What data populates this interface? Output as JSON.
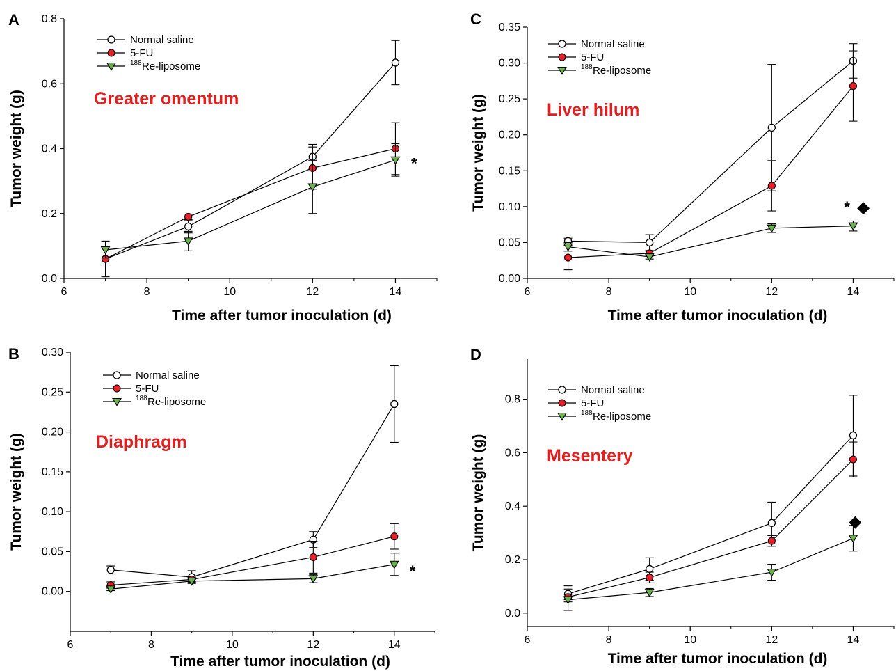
{
  "colors": {
    "normal_saline_fill": "#ffffff",
    "fu_fill": "#e8202a",
    "re_liposome_fill": "#6ab04c",
    "region_label": "#e02020",
    "line": "#000000"
  },
  "chart_data": [
    {
      "panel": "A",
      "type": "line",
      "region_label": "Greater omentum",
      "xlabel": "Time after tumor inoculation (d)",
      "ylabel": "Tumor weight (g)",
      "xlim": [
        6,
        15
      ],
      "ylim": [
        0,
        0.8
      ],
      "xticks": [
        "6",
        "8",
        "10",
        "12",
        "14"
      ],
      "yticks": [
        "0.0",
        "0.2",
        "0.4",
        "0.6",
        "0.8"
      ],
      "legend_position": "top-left",
      "x": [
        7,
        9,
        12,
        14
      ],
      "series": [
        {
          "name": "Normal saline",
          "marker": "open-circle",
          "values": [
            0.06,
            0.16,
            0.375,
            0.665
          ],
          "errors": [
            0.055,
            0.02,
            0.038,
            0.068
          ]
        },
        {
          "name": "5-FU",
          "marker": "red-circle",
          "values": [
            0.06,
            0.19,
            0.34,
            0.4
          ],
          "errors": [
            0.0,
            0.008,
            0.065,
            0.08
          ]
        },
        {
          "name": "Re-liposome",
          "name_sup": "188",
          "marker": "green-triangle",
          "values": [
            0.088,
            0.115,
            0.282,
            0.365
          ],
          "errors": [
            0.025,
            0.03,
            0.082,
            0.05
          ]
        }
      ],
      "annotations": [
        {
          "text": "*",
          "x": 14.45,
          "y": 0.355
        }
      ]
    },
    {
      "panel": "B",
      "type": "line",
      "region_label": "Diaphragm",
      "xlabel": "Time after tumor inoculation (d)",
      "ylabel": "Tumor weight (g)",
      "xlim": [
        6,
        15
      ],
      "ylim": [
        -0.05,
        0.3
      ],
      "xticks": [
        "6",
        "8",
        "10",
        "12",
        "14"
      ],
      "yticks": [
        "0.00",
        "0.05",
        "0.10",
        "0.15",
        "0.20",
        "0.25",
        "0.30"
      ],
      "legend_position": "top-left",
      "x": [
        7,
        9,
        12,
        14
      ],
      "series": [
        {
          "name": "Normal saline",
          "marker": "open-circle",
          "values": [
            0.027,
            0.018,
            0.065,
            0.235
          ],
          "errors": [
            0.005,
            0.008,
            0.01,
            0.048
          ]
        },
        {
          "name": "5-FU",
          "marker": "red-circle",
          "values": [
            0.008,
            0.015,
            0.043,
            0.069
          ],
          "errors": [
            0.004,
            0.003,
            0.02,
            0.016
          ]
        },
        {
          "name": "Re-liposome",
          "name_sup": "188",
          "marker": "green-triangle",
          "values": [
            0.003,
            0.013,
            0.016,
            0.034
          ],
          "errors": [
            0.002,
            0.002,
            0.005,
            0.014
          ]
        }
      ],
      "annotations": [
        {
          "text": "*",
          "x": 14.45,
          "y": 0.026
        }
      ]
    },
    {
      "panel": "C",
      "type": "line",
      "region_label": "Liver hilum",
      "xlabel": "Time after tumor inoculation (d)",
      "ylabel": "Tumor weight (g)",
      "xlim": [
        6,
        15
      ],
      "ylim": [
        0,
        0.35
      ],
      "xticks": [
        "6",
        "8",
        "10",
        "12",
        "14"
      ],
      "yticks": [
        "0.00",
        "0.05",
        "0.10",
        "0.15",
        "0.20",
        "0.25",
        "0.30",
        "0.35"
      ],
      "legend_position": "top-left",
      "x": [
        7,
        9,
        12,
        14
      ],
      "series": [
        {
          "name": "Normal saline",
          "marker": "open-circle",
          "values": [
            0.052,
            0.05,
            0.21,
            0.303
          ],
          "errors": [
            0.004,
            0.011,
            0.088,
            0.024
          ]
        },
        {
          "name": "5-FU",
          "marker": "red-circle",
          "values": [
            0.029,
            0.035,
            0.129,
            0.268
          ],
          "errors": [
            0.017,
            0.003,
            0.035,
            0.049
          ]
        },
        {
          "name": "Re-liposome",
          "name_sup": "188",
          "marker": "green-triangle",
          "values": [
            0.044,
            0.03,
            0.07,
            0.073
          ],
          "errors": [
            0.006,
            0.003,
            0.006,
            0.007
          ]
        }
      ],
      "annotations": [
        {
          "text": "*",
          "x": 13.85,
          "y": 0.1
        },
        {
          "text": "◆",
          "x": 14.25,
          "y": 0.1
        }
      ]
    },
    {
      "panel": "D",
      "type": "line",
      "region_label": "Mesentery",
      "xlabel": "Time after tumor inoculation (d)",
      "ylabel": "Tumor weight (g)",
      "xlim": [
        6,
        15
      ],
      "ylim": [
        -0.05,
        0.95
      ],
      "xticks": [
        "6",
        "8",
        "10",
        "12",
        "14"
      ],
      "yticks": [
        "0.0",
        "0.2",
        "0.4",
        "0.6",
        "0.8"
      ],
      "legend_position": "top-left",
      "x": [
        7,
        9,
        12,
        14
      ],
      "series": [
        {
          "name": "Normal saline",
          "marker": "open-circle",
          "values": [
            0.072,
            0.165,
            0.337,
            0.665
          ],
          "errors": [
            0.03,
            0.042,
            0.078,
            0.15
          ]
        },
        {
          "name": "5-FU",
          "marker": "red-circle",
          "values": [
            0.06,
            0.133,
            0.27,
            0.575
          ],
          "errors": [
            0.01,
            0.02,
            0.02,
            0.065
          ]
        },
        {
          "name": "Re-liposome",
          "name_sup": "188",
          "marker": "green-triangle",
          "values": [
            0.05,
            0.077,
            0.153,
            0.28
          ],
          "errors": [
            0.04,
            0.015,
            0.03,
            0.048
          ]
        }
      ],
      "annotations": [
        {
          "text": "◆",
          "x": 14.05,
          "y": 0.345
        }
      ]
    }
  ]
}
